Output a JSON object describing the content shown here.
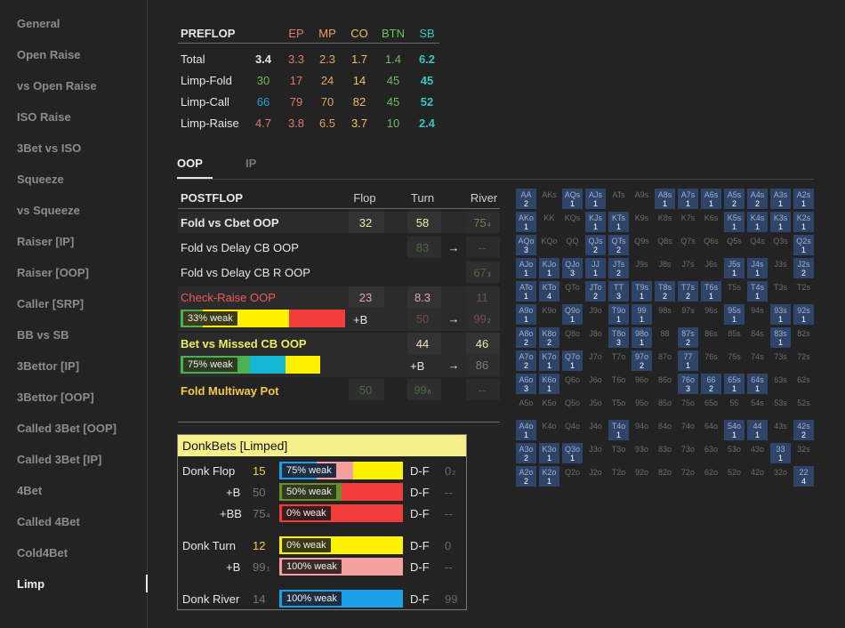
{
  "sidebar": {
    "items": [
      "General",
      "Open Raise",
      "vs Open Raise",
      "ISO Raise",
      "3Bet vs ISO",
      "Squeeze",
      "vs Squeeze",
      "Raiser [IP]",
      "Raiser [OOP]",
      "Caller [SRP]",
      "BB vs SB",
      "3Bettor [IP]",
      "3Bettor [OOP]",
      "Called 3Bet [OOP]",
      "Called 3Bet [IP]",
      "4Bet",
      "Called 4Bet",
      "Cold4Bet",
      "Limp"
    ],
    "active": "Limp"
  },
  "preflop": {
    "header": "PREFLOP",
    "positions": [
      "EP",
      "MP",
      "CO",
      "BTN",
      "SB"
    ],
    "position_colors": [
      "#e07a6a",
      "#e6a060",
      "#f0c060",
      "#6cbf5c",
      "#39c6c6"
    ],
    "rows": [
      {
        "label": "Total",
        "total": "3.4",
        "values": [
          "3.3",
          "2.3",
          "1.7",
          "1.4",
          "6.2"
        ]
      },
      {
        "label": "Limp-Fold",
        "total": "30",
        "values": [
          "17",
          "24",
          "14",
          "45",
          "45"
        ]
      },
      {
        "label": "Limp-Call",
        "total": "66",
        "values": [
          "79",
          "70",
          "82",
          "45",
          "52"
        ]
      },
      {
        "label": "Limp-Raise",
        "total": "4.7",
        "values": [
          "3.8",
          "6.5",
          "3.7",
          "10",
          "2.4"
        ]
      }
    ]
  },
  "tabs": {
    "oop": "OOP",
    "ip": "IP"
  },
  "postflop": {
    "header": "POSTFLOP",
    "cols": [
      "Flop",
      "Turn",
      "River"
    ],
    "fold_cbet": {
      "label": "Fold vs Cbet OOP",
      "flop": "32",
      "turn": "58",
      "river": "75",
      "river_sub": "4"
    },
    "fold_delay": {
      "label": "Fold vs Delay CB OOP",
      "turn": "83",
      "arrow": "→",
      "river": "--"
    },
    "fold_delay_r": {
      "label": "Fold vs Delay CB R OOP",
      "river": "67",
      "river_sub": "3"
    },
    "check_raise": {
      "label": "Check-Raise OOP",
      "flop": "23",
      "turn": "8.3",
      "river": "11",
      "bar_label": "33% weak",
      "plus_b": "+B",
      "turn_b": "50",
      "arrow": "→",
      "river_b": "99",
      "river_b_sub": "2"
    },
    "bet_missed": {
      "label": "Bet vs Missed CB OOP",
      "turn": "44",
      "river": "46",
      "bar_label": "75% weak",
      "plus_b": "+B",
      "arrow": "→",
      "river_b": "86"
    },
    "fold_multi": {
      "label": "Fold Multiway Pot",
      "flop": "50",
      "turn": "99",
      "turn_sub": "6",
      "river": "--"
    }
  },
  "donk": {
    "title": "DonkBets [Limped]",
    "rows": [
      {
        "label": "Donk Flop",
        "val": "15",
        "bar_label": "75% weak",
        "df": "D-F",
        "res": "0",
        "res_sub": "2"
      },
      {
        "label": "+B",
        "val": "50",
        "bar_label": "50% weak",
        "df": "D-F",
        "res": "--"
      },
      {
        "label": "+BB",
        "val": "75",
        "val_sub": "4",
        "bar_label": "0% weak",
        "df": "D-F",
        "res": "--"
      },
      {
        "label": "Donk Turn",
        "val": "12",
        "bar_label": "0% weak",
        "df": "D-F",
        "res": "0"
      },
      {
        "label": "+B",
        "val": "99",
        "val_sub": "1",
        "bar_label": "100% weak",
        "df": "D-F",
        "res": "--"
      },
      {
        "label": "Donk River",
        "val": "14",
        "bar_label": "100% weak",
        "df": "D-F",
        "res": "99"
      }
    ]
  },
  "colors": {
    "yellow": "#fff200",
    "red": "#f23c3c",
    "green": "#4caf50",
    "cyan": "#14b8d6",
    "pink": "#f4a0a0",
    "blue": "#1aa0e8",
    "accent": "#f2d64b",
    "olive": "#6b8f2a"
  },
  "range_grid": [
    [
      [
        "AA",
        "2"
      ],
      [
        "AKs",
        ""
      ],
      [
        "AQs",
        "1"
      ],
      [
        "AJs",
        "1"
      ],
      [
        "ATs",
        ""
      ],
      [
        "A9s",
        ""
      ],
      [
        "A8s",
        "1"
      ],
      [
        "A7s",
        "1"
      ],
      [
        "A6s",
        "1"
      ],
      [
        "A5s",
        "2"
      ],
      [
        "A4s",
        "2"
      ],
      [
        "A3s",
        "1"
      ],
      [
        "A2s",
        "1"
      ]
    ],
    [
      [
        "AKo",
        "1"
      ],
      [
        "KK",
        ""
      ],
      [
        "KQs",
        ""
      ],
      [
        "KJs",
        "1"
      ],
      [
        "KTs",
        "1"
      ],
      [
        "K9s",
        ""
      ],
      [
        "K8s",
        ""
      ],
      [
        "K7s",
        ""
      ],
      [
        "K6s",
        ""
      ],
      [
        "K5s",
        "1"
      ],
      [
        "K4s",
        "1"
      ],
      [
        "K3s",
        "1"
      ],
      [
        "K2s",
        "1"
      ]
    ],
    [
      [
        "AQo",
        "3"
      ],
      [
        "KQo",
        ""
      ],
      [
        "QQ",
        ""
      ],
      [
        "QJs",
        "2"
      ],
      [
        "QTs",
        "2"
      ],
      [
        "Q9s",
        ""
      ],
      [
        "Q8s",
        ""
      ],
      [
        "Q7s",
        ""
      ],
      [
        "Q6s",
        ""
      ],
      [
        "Q5s",
        ""
      ],
      [
        "Q4s",
        ""
      ],
      [
        "Q3s",
        ""
      ],
      [
        "Q2s",
        "1"
      ]
    ],
    [
      [
        "AJo",
        "1"
      ],
      [
        "KJo",
        "1"
      ],
      [
        "QJo",
        "3"
      ],
      [
        "JJ",
        "1"
      ],
      [
        "JTs",
        "2"
      ],
      [
        "J9s",
        ""
      ],
      [
        "J8s",
        ""
      ],
      [
        "J7s",
        ""
      ],
      [
        "J6s",
        ""
      ],
      [
        "J5s",
        "1"
      ],
      [
        "J4s",
        "1"
      ],
      [
        "J3s",
        ""
      ],
      [
        "J2s",
        "2"
      ]
    ],
    [
      [
        "ATo",
        "1"
      ],
      [
        "KTo",
        "4"
      ],
      [
        "QTo",
        ""
      ],
      [
        "JTo",
        "2"
      ],
      [
        "TT",
        "3"
      ],
      [
        "T9s",
        "1"
      ],
      [
        "T8s",
        "2"
      ],
      [
        "T7s",
        "2"
      ],
      [
        "T6s",
        "1"
      ],
      [
        "T5s",
        ""
      ],
      [
        "T4s",
        "1"
      ],
      [
        "T3s",
        ""
      ],
      [
        "T2s",
        ""
      ]
    ],
    [
      [
        "A9o",
        "1"
      ],
      [
        "K9o",
        ""
      ],
      [
        "Q9o",
        "1"
      ],
      [
        "J9o",
        ""
      ],
      [
        "T9o",
        "1"
      ],
      [
        "99",
        "1"
      ],
      [
        "98s",
        ""
      ],
      [
        "97s",
        ""
      ],
      [
        "96s",
        ""
      ],
      [
        "95s",
        "1"
      ],
      [
        "94s",
        ""
      ],
      [
        "93s",
        "1"
      ],
      [
        "92s",
        "1"
      ]
    ],
    [
      [
        "A8o",
        "2"
      ],
      [
        "K8o",
        "2"
      ],
      [
        "Q8o",
        ""
      ],
      [
        "J8o",
        ""
      ],
      [
        "T8o",
        "3"
      ],
      [
        "98o",
        "1"
      ],
      [
        "88",
        ""
      ],
      [
        "87s",
        "2"
      ],
      [
        "86s",
        ""
      ],
      [
        "85s",
        ""
      ],
      [
        "84s",
        ""
      ],
      [
        "83s",
        "1"
      ],
      [
        "82s",
        ""
      ]
    ],
    [
      [
        "A7o",
        "2"
      ],
      [
        "K7o",
        "1"
      ],
      [
        "Q7o",
        "1"
      ],
      [
        "J7o",
        ""
      ],
      [
        "T7o",
        ""
      ],
      [
        "97o",
        "2"
      ],
      [
        "87o",
        ""
      ],
      [
        "77",
        "1"
      ],
      [
        "76s",
        ""
      ],
      [
        "75s",
        ""
      ],
      [
        "74s",
        ""
      ],
      [
        "73s",
        ""
      ],
      [
        "72s",
        ""
      ]
    ],
    [
      [
        "A6o",
        "3"
      ],
      [
        "K6o",
        "1"
      ],
      [
        "Q6o",
        ""
      ],
      [
        "J6o",
        ""
      ],
      [
        "T6o",
        ""
      ],
      [
        "96o",
        ""
      ],
      [
        "86o",
        ""
      ],
      [
        "76o",
        "3"
      ],
      [
        "66",
        "2"
      ],
      [
        "65s",
        "1"
      ],
      [
        "64s",
        "1"
      ],
      [
        "63s",
        ""
      ],
      [
        "62s",
        ""
      ]
    ],
    [
      [
        "A5o",
        ""
      ],
      [
        "K5o",
        ""
      ],
      [
        "Q5o",
        ""
      ],
      [
        "J5o",
        ""
      ],
      [
        "T5o",
        ""
      ],
      [
        "95o",
        ""
      ],
      [
        "85o",
        ""
      ],
      [
        "75o",
        ""
      ],
      [
        "65o",
        ""
      ],
      [
        "55",
        ""
      ],
      [
        "54s",
        ""
      ],
      [
        "53s",
        ""
      ],
      [
        "52s",
        ""
      ]
    ],
    [
      [
        "A4o",
        "1"
      ],
      [
        "K4o",
        ""
      ],
      [
        "Q4o",
        ""
      ],
      [
        "J4o",
        ""
      ],
      [
        "T4o",
        "1"
      ],
      [
        "94o",
        ""
      ],
      [
        "84o",
        ""
      ],
      [
        "74o",
        ""
      ],
      [
        "64o",
        ""
      ],
      [
        "54o",
        "1"
      ],
      [
        "44",
        "1"
      ],
      [
        "43s",
        ""
      ],
      [
        "42s",
        "2"
      ]
    ],
    [
      [
        "A3o",
        "2"
      ],
      [
        "K3o",
        "1"
      ],
      [
        "Q3o",
        "1"
      ],
      [
        "J3o",
        ""
      ],
      [
        "T3o",
        ""
      ],
      [
        "93o",
        ""
      ],
      [
        "83o",
        ""
      ],
      [
        "73o",
        ""
      ],
      [
        "63o",
        ""
      ],
      [
        "53o",
        ""
      ],
      [
        "43o",
        ""
      ],
      [
        "33",
        "1"
      ],
      [
        "32s",
        ""
      ]
    ],
    [
      [
        "A2o",
        "2"
      ],
      [
        "K2o",
        "1"
      ],
      [
        "Q2o",
        ""
      ],
      [
        "J2o",
        ""
      ],
      [
        "T2o",
        ""
      ],
      [
        "92o",
        ""
      ],
      [
        "82o",
        ""
      ],
      [
        "72o",
        ""
      ],
      [
        "62o",
        ""
      ],
      [
        "52o",
        ""
      ],
      [
        "42o",
        ""
      ],
      [
        "32o",
        ""
      ],
      [
        "22",
        "4"
      ]
    ]
  ]
}
